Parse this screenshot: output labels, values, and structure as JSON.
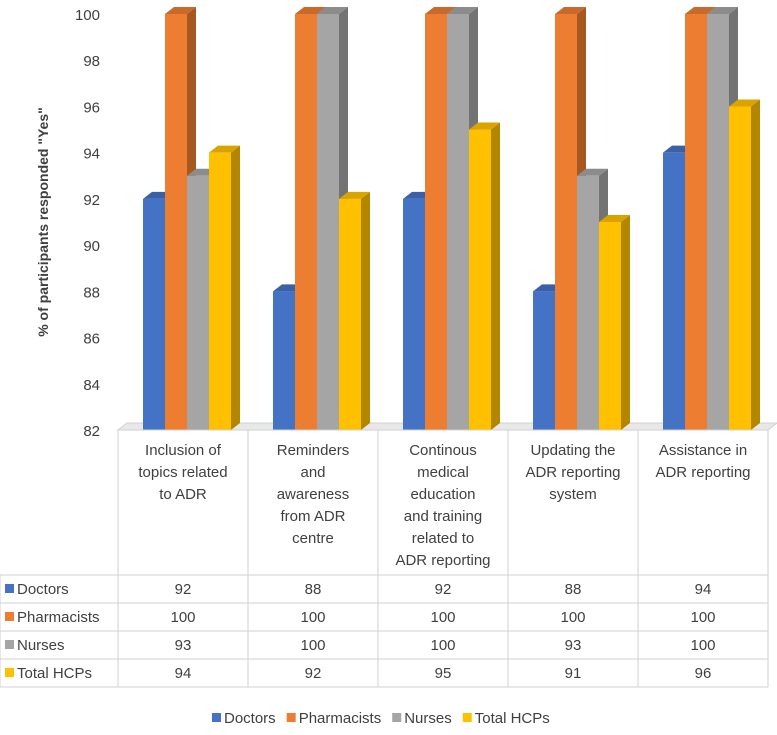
{
  "chart_data": {
    "type": "bar",
    "title": "",
    "ylabel": "% of participants responded \"Yes\"",
    "xlabel": "",
    "ylim": [
      82,
      100
    ],
    "yticks": [
      82,
      84,
      86,
      88,
      90,
      92,
      94,
      96,
      98,
      100
    ],
    "grid": false,
    "legend_position": "bottom",
    "categories": [
      [
        "Inclusion of",
        "topics related",
        "to ADR"
      ],
      [
        "Reminders",
        "and",
        "awareness",
        "from ADR",
        "centre"
      ],
      [
        "Continous",
        "medical",
        "education",
        "and training",
        "related to",
        "ADR reporting"
      ],
      [
        "Updating the",
        "ADR reporting",
        "system"
      ],
      [
        "Assistance in",
        "ADR reporting"
      ]
    ],
    "series": [
      {
        "name": "Doctors",
        "color": "#4472C4",
        "values": [
          92,
          88,
          92,
          88,
          94
        ]
      },
      {
        "name": "Pharmacists",
        "color": "#ED7D31",
        "values": [
          100,
          100,
          100,
          100,
          100
        ]
      },
      {
        "name": "Nurses",
        "color": "#A5A5A5",
        "values": [
          93,
          100,
          100,
          93,
          100
        ]
      },
      {
        "name": "Total HCPs",
        "color": "#FFC000",
        "values": [
          94,
          92,
          95,
          91,
          96
        ]
      }
    ]
  }
}
